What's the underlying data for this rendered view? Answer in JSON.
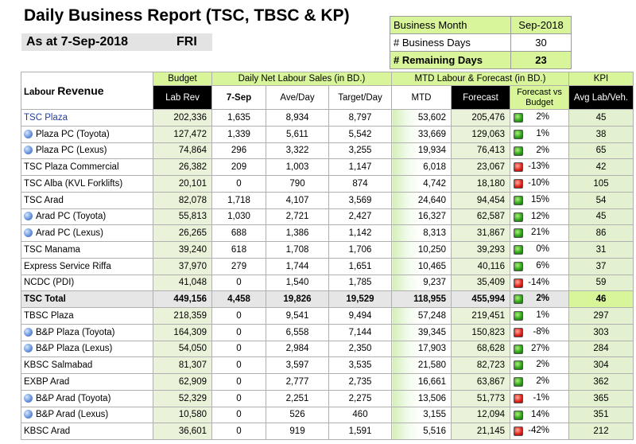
{
  "header": {
    "title": "Daily Business Report (TSC, TBSC & KP)",
    "as_at": "As at  7-Sep-2018",
    "day": "FRI"
  },
  "business_month": {
    "rows": [
      {
        "label": "Business Month",
        "value": "Sep-2018"
      },
      {
        "label": "# Business Days",
        "value": "30"
      },
      {
        "label": "# Remaining Days",
        "value": "23"
      }
    ]
  },
  "table": {
    "labour_title": "Labour",
    "labour_sub": "Revenue",
    "groups": {
      "budget": "Budget",
      "daily": "Daily Net Labour Sales (in BD.)",
      "mtd": "MTD Labour & Forecast (in BD.)",
      "kpi": "KPI"
    },
    "columns": {
      "lab_rev": "Lab Rev",
      "day": "7-Sep",
      "ave_day": "Ave/Day",
      "target_day": "Target/Day",
      "mtd": "MTD",
      "forecast": "Forecast",
      "fvb": "Forecast vs Budget",
      "avg_lab": "Avg Lab/Veh."
    },
    "status_colors": {
      "green": "#2ea01a",
      "red": "#e0201a"
    },
    "rows": [
      {
        "name": "TSC Plaza",
        "sub": false,
        "link": true,
        "budget": "202,336",
        "day": "1,635",
        "ave": "8,934",
        "target": "8,797",
        "mtd": "53,602",
        "forecast": "205,476",
        "status": "green",
        "pct": "2%",
        "kpi": "45"
      },
      {
        "name": "Plaza PC (Toyota)",
        "sub": true,
        "budget": "127,472",
        "day": "1,339",
        "ave": "5,611",
        "target": "5,542",
        "mtd": "33,669",
        "forecast": "129,063",
        "status": "green",
        "pct": "1%",
        "kpi": "38"
      },
      {
        "name": "Plaza PC (Lexus)",
        "sub": true,
        "budget": "74,864",
        "day": "296",
        "ave": "3,322",
        "target": "3,255",
        "mtd": "19,934",
        "forecast": "76,413",
        "status": "green",
        "pct": "2%",
        "kpi": "65"
      },
      {
        "name": "TSC Plaza Commercial",
        "sub": false,
        "budget": "26,382",
        "day": "209",
        "ave": "1,003",
        "target": "1,147",
        "mtd": "6,018",
        "forecast": "23,067",
        "status": "red",
        "pct": "-13%",
        "kpi": "42"
      },
      {
        "name": "TSC Alba (KVL Forklifts)",
        "sub": false,
        "budget": "20,101",
        "day": "0",
        "ave": "790",
        "target": "874",
        "mtd": "4,742",
        "forecast": "18,180",
        "status": "red",
        "pct": "-10%",
        "kpi": "105"
      },
      {
        "name": "TSC Arad",
        "sub": false,
        "budget": "82,078",
        "day": "1,718",
        "ave": "4,107",
        "target": "3,569",
        "mtd": "24,640",
        "forecast": "94,454",
        "status": "green",
        "pct": "15%",
        "kpi": "54"
      },
      {
        "name": "Arad PC (Toyota)",
        "sub": true,
        "budget": "55,813",
        "day": "1,030",
        "ave": "2,721",
        "target": "2,427",
        "mtd": "16,327",
        "forecast": "62,587",
        "status": "green",
        "pct": "12%",
        "kpi": "45"
      },
      {
        "name": "Arad PC (Lexus)",
        "sub": true,
        "budget": "26,265",
        "day": "688",
        "ave": "1,386",
        "target": "1,142",
        "mtd": "8,313",
        "forecast": "31,867",
        "status": "green",
        "pct": "21%",
        "kpi": "86"
      },
      {
        "name": "TSC Manama",
        "sub": false,
        "budget": "39,240",
        "day": "618",
        "ave": "1,708",
        "target": "1,706",
        "mtd": "10,250",
        "forecast": "39,293",
        "status": "green",
        "pct": "0%",
        "kpi": "31"
      },
      {
        "name": "Express Service Riffa",
        "sub": false,
        "budget": "37,970",
        "day": "279",
        "ave": "1,744",
        "target": "1,651",
        "mtd": "10,465",
        "forecast": "40,116",
        "status": "green",
        "pct": "6%",
        "kpi": "37"
      },
      {
        "name": "NCDC (PDI)",
        "sub": false,
        "budget": "41,048",
        "day": "0",
        "ave": "1,540",
        "target": "1,785",
        "mtd": "9,237",
        "forecast": "35,409",
        "status": "red",
        "pct": "-14%",
        "kpi": "59"
      },
      {
        "name": "TSC Total",
        "sub": false,
        "total": true,
        "budget": "449,156",
        "day": "4,458",
        "ave": "19,826",
        "target": "19,529",
        "mtd": "118,955",
        "forecast": "455,994",
        "status": "green",
        "pct": "2%",
        "kpi": "46"
      },
      {
        "name": "TBSC Plaza",
        "sub": false,
        "budget": "218,359",
        "day": "0",
        "ave": "9,541",
        "target": "9,494",
        "mtd": "57,248",
        "forecast": "219,451",
        "status": "green",
        "pct": "1%",
        "kpi": "297"
      },
      {
        "name": "B&P Plaza (Toyota)",
        "sub": true,
        "budget": "164,309",
        "day": "0",
        "ave": "6,558",
        "target": "7,144",
        "mtd": "39,345",
        "forecast": "150,823",
        "status": "red",
        "pct": "-8%",
        "kpi": "303"
      },
      {
        "name": "B&P Plaza (Lexus)",
        "sub": true,
        "budget": "54,050",
        "day": "0",
        "ave": "2,984",
        "target": "2,350",
        "mtd": "17,903",
        "forecast": "68,628",
        "status": "green",
        "pct": "27%",
        "kpi": "284"
      },
      {
        "name": "KBSC Salmabad",
        "sub": false,
        "budget": "81,307",
        "day": "0",
        "ave": "3,597",
        "target": "3,535",
        "mtd": "21,580",
        "forecast": "82,723",
        "status": "green",
        "pct": "2%",
        "kpi": "304"
      },
      {
        "name": "EXBP Arad",
        "sub": false,
        "budget": "62,909",
        "day": "0",
        "ave": "2,777",
        "target": "2,735",
        "mtd": "16,661",
        "forecast": "63,867",
        "status": "green",
        "pct": "2%",
        "kpi": "362"
      },
      {
        "name": "B&P Arad (Toyota)",
        "sub": true,
        "budget": "52,329",
        "day": "0",
        "ave": "2,251",
        "target": "2,275",
        "mtd": "13,506",
        "forecast": "51,773",
        "status": "red",
        "pct": "-1%",
        "kpi": "365"
      },
      {
        "name": "B&P Arad (Lexus)",
        "sub": true,
        "budget": "10,580",
        "day": "0",
        "ave": "526",
        "target": "460",
        "mtd": "3,155",
        "forecast": "12,094",
        "status": "green",
        "pct": "14%",
        "kpi": "351"
      },
      {
        "name": "KBSC Arad",
        "sub": false,
        "budget": "36,601",
        "day": "0",
        "ave": "919",
        "target": "1,591",
        "mtd": "5,516",
        "forecast": "21,145",
        "status": "red",
        "pct": "-42%",
        "kpi": "212"
      }
    ]
  }
}
